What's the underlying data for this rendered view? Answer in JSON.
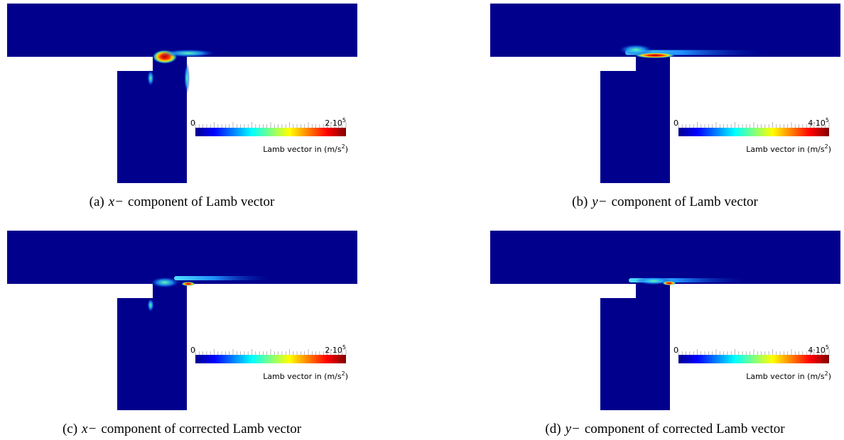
{
  "panels": [
    {
      "label": "(a)",
      "var": "x−",
      "text": "component of Lamb vector",
      "colorbar": {
        "min": "0",
        "max": "2·10",
        "max_exp": "5",
        "title": "Lamb vector in (m/s",
        "title_exp": "2",
        "title_end": ")"
      }
    },
    {
      "label": "(b)",
      "var": "y−",
      "text": "component of Lamb vector",
      "colorbar": {
        "min": "0",
        "max": "4·10",
        "max_exp": "5",
        "title": "Lamb vector in (m/s",
        "title_exp": "2",
        "title_end": ")"
      }
    },
    {
      "label": "(c)",
      "var": "x−",
      "text": "component of corrected Lamb vector",
      "colorbar": {
        "min": "0",
        "max": "2·10",
        "max_exp": "5",
        "title": "Lamb vector in (m/s",
        "title_exp": "2",
        "title_end": ")"
      }
    },
    {
      "label": "(d)",
      "var": "y−",
      "text": "component of corrected Lamb vector",
      "colorbar": {
        "min": "0",
        "max": "4·10",
        "max_exp": "5",
        "title": "Lamb vector in (m/s",
        "title_exp": "2",
        "title_end": ")"
      }
    }
  ]
}
